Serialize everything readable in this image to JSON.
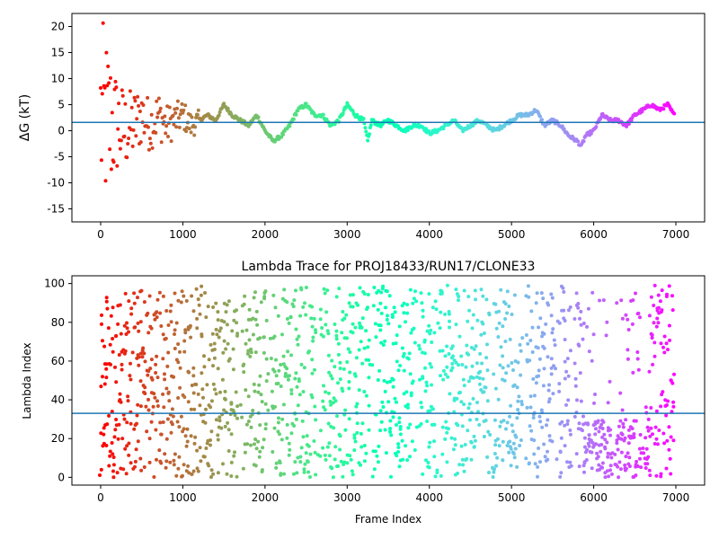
{
  "figure": {
    "colormap": "rainbow (red at first frames → violet at last frames)",
    "hline_color": "#1f77b4"
  },
  "chart_data": [
    {
      "type": "scatter",
      "title": "",
      "xlabel": "",
      "ylabel": "ΔG (kT)",
      "xlim": [
        -350,
        7350
      ],
      "ylim": [
        -17.5,
        22.5
      ],
      "xticks": [
        0,
        1000,
        2000,
        3000,
        4000,
        5000,
        6000,
        7000
      ],
      "yticks": [
        -15,
        -10,
        -5,
        0,
        5,
        10,
        15,
        20
      ],
      "hline": 1.6,
      "grid": false,
      "legend": "none",
      "color_by": "frame index (rainbow colormap, reversed)",
      "n_frames": 7000,
      "trend": {
        "description": "running free-energy estimate; large scatter early, converging later",
        "x": [
          0,
          50,
          100,
          200,
          300,
          400,
          500,
          600,
          700,
          800,
          900,
          1000,
          1100,
          1200,
          1300,
          1400,
          1500,
          1600,
          1700,
          1800,
          1900,
          2000,
          2100,
          2200,
          2300,
          2400,
          2500,
          2600,
          2700,
          2800,
          2900,
          3000,
          3100,
          3200,
          3250,
          3300,
          3400,
          3500,
          3600,
          3700,
          3800,
          3900,
          4000,
          4100,
          4200,
          4300,
          4400,
          4500,
          4600,
          4700,
          4800,
          4900,
          5000,
          5100,
          5200,
          5300,
          5400,
          5500,
          5600,
          5700,
          5800,
          5850,
          5900,
          6000,
          6100,
          6200,
          6300,
          6400,
          6500,
          6600,
          6700,
          6800,
          6900,
          6980
        ],
        "y": [
          2,
          2,
          1.5,
          1,
          0,
          1,
          3,
          1,
          3,
          1,
          2,
          3,
          1,
          2,
          3,
          2,
          5,
          3,
          2,
          1,
          3,
          0,
          -2,
          -1,
          1,
          4,
          5,
          3,
          3,
          1,
          2,
          5,
          3,
          2,
          -2,
          2,
          1,
          2,
          1,
          0,
          1,
          1,
          -0.5,
          0,
          1,
          2,
          0,
          1,
          2,
          1,
          0,
          1,
          2,
          3,
          3,
          4,
          1,
          2,
          1,
          -1,
          -2,
          -3,
          -1,
          0,
          3,
          2,
          2,
          1,
          3,
          4,
          5,
          4,
          5,
          3
        ]
      },
      "early_spread": {
        "description": "first frames scatter widely between about -16 and 22",
        "x": [
          0,
          100,
          200,
          300,
          400,
          500,
          600,
          700,
          800,
          1000,
          1200
        ],
        "half_width": [
          20,
          16,
          10,
          8,
          7,
          6,
          5,
          5,
          4,
          3,
          2
        ]
      }
    },
    {
      "type": "scatter",
      "title": "Lambda Trace for PROJ18433/RUN17/CLONE33",
      "xlabel": "Frame Index",
      "ylabel": "Lambda Index",
      "xlim": [
        -350,
        7350
      ],
      "ylim": [
        -4,
        104
      ],
      "xticks": [
        0,
        1000,
        2000,
        3000,
        4000,
        5000,
        6000,
        7000
      ],
      "yticks": [
        0,
        20,
        40,
        60,
        80,
        100
      ],
      "hline": 33,
      "grid": false,
      "legend": "none",
      "color_by": "frame index (rainbow colormap, reversed)",
      "n_frames": 7000,
      "range": [
        0,
        99
      ],
      "density_gaps_x": [
        1700,
        2050,
        2650,
        3300,
        3850,
        4100,
        4750,
        5150,
        5550,
        5750,
        6250,
        6600
      ],
      "dense_low_band": {
        "x_range": [
          5850,
          6700
        ],
        "y_range": [
          0,
          30
        ]
      }
    }
  ]
}
